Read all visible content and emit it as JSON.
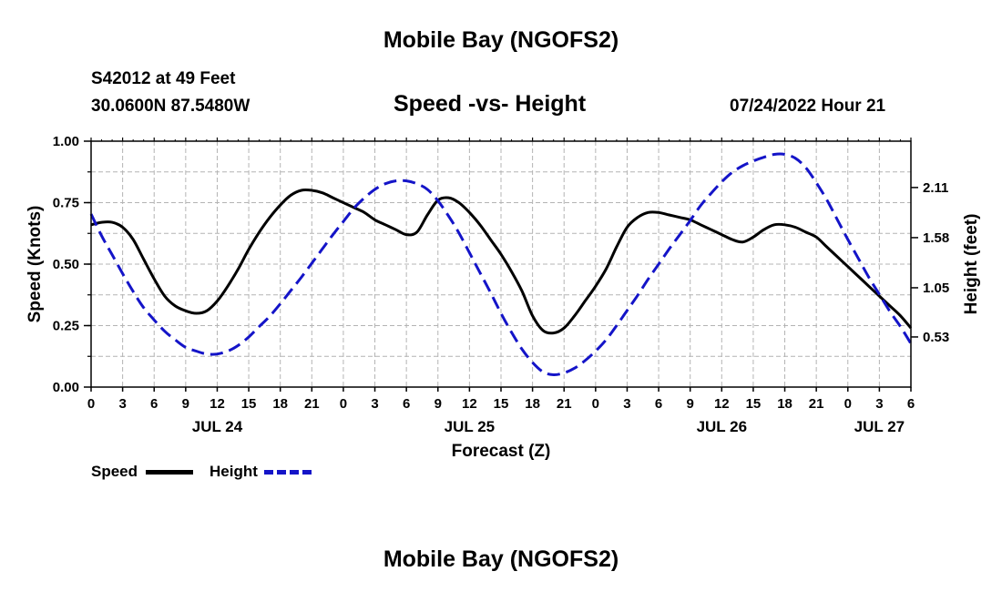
{
  "header": {
    "title": "Mobile Bay (NGOFS2)",
    "station": "S42012 at 49 Feet",
    "coords": "30.0600N  87.5480W",
    "subtitle": "Speed -vs- Height",
    "datetime": "07/24/2022 Hour 21",
    "footer_title": "Mobile Bay (NGOFS2)"
  },
  "legend": {
    "speed_label": "Speed",
    "height_label": "Height"
  },
  "colors": {
    "speed": "#000000",
    "height": "#1414c8",
    "grid": "#b4b4b4"
  },
  "chart_data": {
    "type": "line",
    "title": "Speed -vs- Height",
    "xlabel": "Forecast (Z)",
    "ylabel": "Speed (Knots)",
    "y2label": "Height (feet)",
    "x_unit": "hours since 2022-07-24 00Z",
    "xlim": [
      0,
      78
    ],
    "xticks": [
      0,
      3,
      6,
      9,
      12,
      15,
      18,
      21,
      24,
      27,
      30,
      33,
      36,
      39,
      42,
      45,
      48,
      51,
      54,
      57,
      60,
      63,
      66,
      69,
      72,
      75,
      78
    ],
    "xtick_labels": [
      "0",
      "3",
      "6",
      "9",
      "12",
      "15",
      "18",
      "21",
      "0",
      "3",
      "6",
      "9",
      "12",
      "15",
      "18",
      "21",
      "0",
      "3",
      "6",
      "9",
      "12",
      "15",
      "18",
      "21",
      "0",
      "3",
      "6"
    ],
    "day_labels": [
      {
        "x": 12,
        "label": "JUL 24"
      },
      {
        "x": 36,
        "label": "JUL 25"
      },
      {
        "x": 60,
        "label": "JUL 26"
      },
      {
        "x": 75,
        "label": "JUL 27"
      }
    ],
    "ylim": [
      0,
      1.0
    ],
    "yticks": [
      0.0,
      0.25,
      0.5,
      0.75,
      1.0
    ],
    "ytick_labels": [
      "0.00",
      "0.25",
      "0.50",
      "0.75",
      "1.00"
    ],
    "y2lim": [
      0.0,
      2.6
    ],
    "y2ticks": [
      0.53,
      1.05,
      1.58,
      2.11
    ],
    "y2tick_labels": [
      "0.53",
      "1.05",
      "1.58",
      "2.11"
    ],
    "series": [
      {
        "name": "Speed",
        "axis": "left",
        "style": "solid",
        "x": [
          0,
          1,
          2,
          3,
          4,
          5,
          6,
          7,
          8,
          9,
          10,
          11,
          12,
          13,
          14,
          15,
          16,
          17,
          18,
          19,
          20,
          21,
          22,
          23,
          24,
          25,
          26,
          27,
          28,
          29,
          30,
          31,
          32,
          33,
          34,
          35,
          36,
          37,
          38,
          39,
          40,
          41,
          42,
          43,
          44,
          45,
          46,
          47,
          48,
          49,
          50,
          51,
          52,
          53,
          54,
          55,
          56,
          57,
          58,
          59,
          60,
          61,
          62,
          63,
          64,
          65,
          66,
          67,
          68,
          69,
          70,
          71,
          72,
          73,
          74,
          75,
          76,
          77,
          78
        ],
        "values": [
          0.66,
          0.67,
          0.67,
          0.65,
          0.6,
          0.52,
          0.44,
          0.37,
          0.33,
          0.31,
          0.3,
          0.31,
          0.35,
          0.41,
          0.48,
          0.56,
          0.63,
          0.69,
          0.74,
          0.78,
          0.8,
          0.8,
          0.79,
          0.77,
          0.75,
          0.73,
          0.71,
          0.68,
          0.66,
          0.64,
          0.62,
          0.63,
          0.7,
          0.76,
          0.77,
          0.75,
          0.71,
          0.66,
          0.6,
          0.54,
          0.47,
          0.39,
          0.29,
          0.23,
          0.22,
          0.24,
          0.29,
          0.35,
          0.41,
          0.48,
          0.57,
          0.65,
          0.69,
          0.71,
          0.71,
          0.7,
          0.69,
          0.68,
          0.66,
          0.64,
          0.62,
          0.6,
          0.59,
          0.61,
          0.64,
          0.66,
          0.66,
          0.65,
          0.63,
          0.61,
          0.57,
          0.53,
          0.49,
          0.45,
          0.41,
          0.37,
          0.33,
          0.29,
          0.24
        ]
      },
      {
        "name": "Height",
        "axis": "right",
        "style": "dashed",
        "x": [
          0,
          1,
          2,
          3,
          4,
          5,
          6,
          7,
          8,
          9,
          10,
          11,
          12,
          13,
          14,
          15,
          16,
          17,
          18,
          19,
          20,
          21,
          22,
          23,
          24,
          25,
          26,
          27,
          28,
          29,
          30,
          31,
          32,
          33,
          34,
          35,
          36,
          37,
          38,
          39,
          40,
          41,
          42,
          43,
          44,
          45,
          46,
          47,
          48,
          49,
          50,
          51,
          52,
          53,
          54,
          55,
          56,
          57,
          58,
          59,
          60,
          61,
          62,
          63,
          64,
          65,
          66,
          67,
          68,
          69,
          70,
          71,
          72,
          73,
          74,
          75,
          76,
          77,
          78
        ],
        "values": [
          1.83,
          1.6,
          1.4,
          1.2,
          1.01,
          0.84,
          0.71,
          0.59,
          0.5,
          0.42,
          0.38,
          0.35,
          0.35,
          0.38,
          0.44,
          0.53,
          0.64,
          0.75,
          0.88,
          1.02,
          1.16,
          1.31,
          1.46,
          1.61,
          1.75,
          1.89,
          2.0,
          2.09,
          2.15,
          2.18,
          2.18,
          2.15,
          2.09,
          1.97,
          1.81,
          1.63,
          1.42,
          1.21,
          1.0,
          0.78,
          0.58,
          0.4,
          0.26,
          0.16,
          0.13,
          0.15,
          0.2,
          0.28,
          0.38,
          0.5,
          0.65,
          0.81,
          0.97,
          1.14,
          1.3,
          1.46,
          1.61,
          1.76,
          1.92,
          2.05,
          2.17,
          2.27,
          2.34,
          2.39,
          2.43,
          2.46,
          2.46,
          2.42,
          2.32,
          2.16,
          1.98,
          1.77,
          1.56,
          1.36,
          1.16,
          0.98,
          0.8,
          0.64,
          0.46
        ]
      }
    ]
  }
}
